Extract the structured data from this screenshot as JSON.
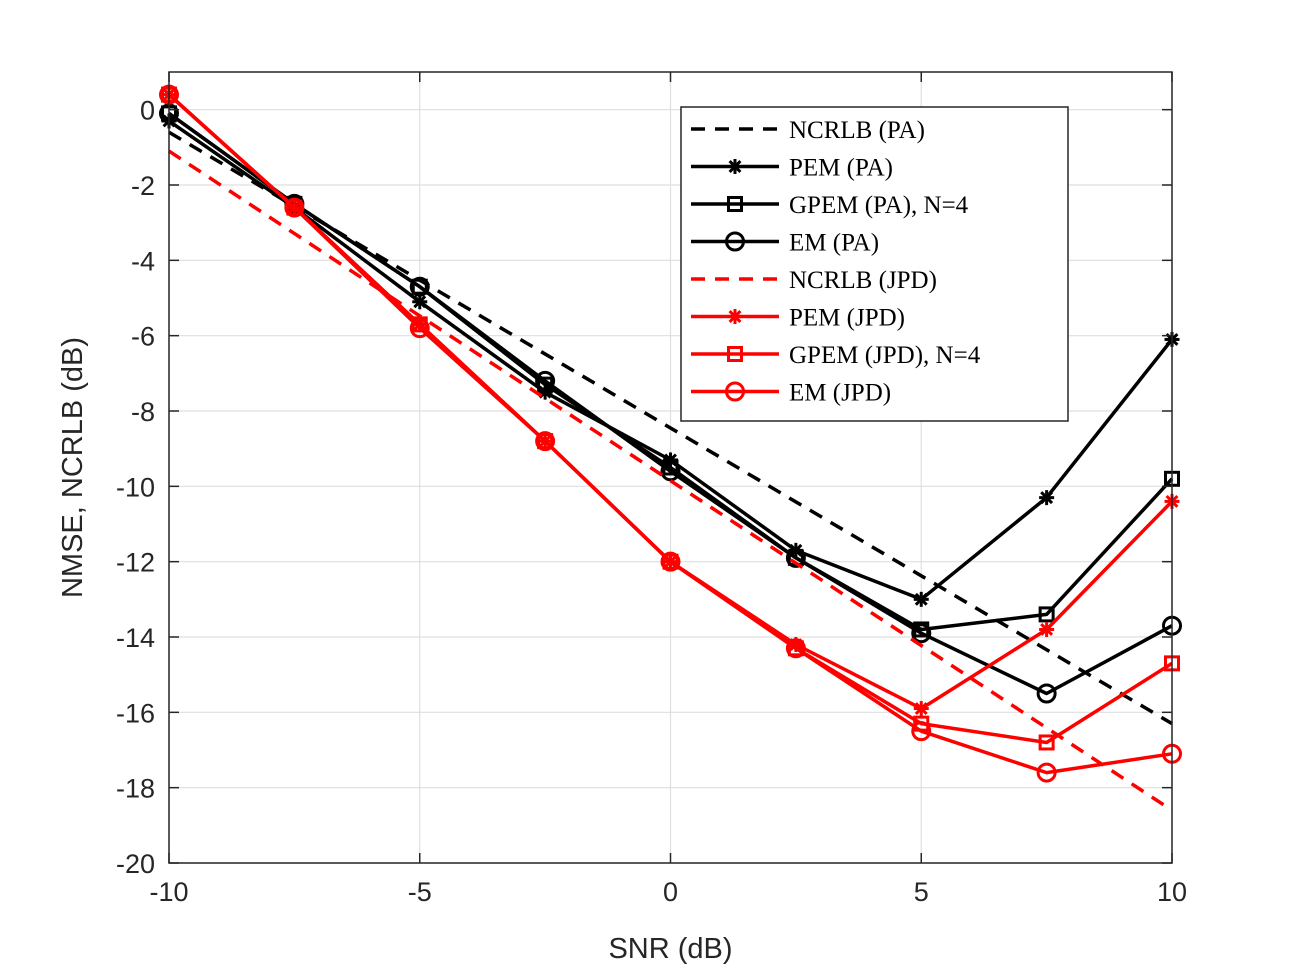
{
  "chart_data": {
    "type": "line",
    "title": "",
    "xlabel": "SNR (dB)",
    "ylabel": "NMSE,  NCRLB (dB)",
    "xlim": [
      -10,
      10
    ],
    "ylim": [
      -20,
      1
    ],
    "xticks": [
      -10,
      -5,
      0,
      5,
      10
    ],
    "yticks": [
      0,
      -2,
      -4,
      -6,
      -8,
      -10,
      -12,
      -14,
      -16,
      -18,
      -20
    ],
    "grid": true,
    "legend_position": "top-right",
    "x": [
      -10,
      -7.5,
      -5,
      -2.5,
      0,
      2.5,
      5,
      7.5,
      10
    ],
    "series": [
      {
        "name": "NCRLB (PA)",
        "color": "#000000",
        "style": "dashed",
        "marker": "none",
        "x": [
          -10,
          10
        ],
        "values": [
          -0.6,
          -16.3
        ]
      },
      {
        "name": "PEM (PA)",
        "color": "#000000",
        "style": "solid",
        "marker": "asterisk",
        "values": [
          -0.3,
          -2.6,
          -5.1,
          -7.5,
          -9.3,
          -11.7,
          -13.0,
          -10.3,
          -6.1
        ]
      },
      {
        "name": "GPEM (PA), N=4",
        "color": "#000000",
        "style": "solid",
        "marker": "square",
        "values": [
          -0.1,
          -2.5,
          -4.7,
          -7.3,
          -9.5,
          -11.9,
          -13.8,
          -13.4,
          -9.8
        ]
      },
      {
        "name": "EM (PA)",
        "color": "#000000",
        "style": "solid",
        "marker": "circle",
        "values": [
          -0.1,
          -2.5,
          -4.7,
          -7.2,
          -9.6,
          -11.9,
          -13.9,
          -15.5,
          -13.7
        ]
      },
      {
        "name": "NCRLB (JPD)",
        "color": "#ff0000",
        "style": "dashed",
        "marker": "none",
        "x": [
          -10,
          10
        ],
        "values": [
          -1.1,
          -18.6
        ]
      },
      {
        "name": "PEM (JPD)",
        "color": "#ff0000",
        "style": "solid",
        "marker": "asterisk",
        "values": [
          0.4,
          -2.6,
          -5.7,
          -8.8,
          -12.0,
          -14.2,
          -15.9,
          -13.8,
          -10.4
        ]
      },
      {
        "name": "GPEM (JPD), N=4",
        "color": "#ff0000",
        "style": "solid",
        "marker": "square",
        "values": [
          0.4,
          -2.6,
          -5.7,
          -8.8,
          -12.0,
          -14.3,
          -16.3,
          -16.8,
          -14.7
        ]
      },
      {
        "name": "EM (JPD)",
        "color": "#ff0000",
        "style": "solid",
        "marker": "circle",
        "values": [
          0.4,
          -2.6,
          -5.8,
          -8.8,
          -12.0,
          -14.3,
          -16.5,
          -17.6,
          -17.1
        ]
      }
    ]
  }
}
